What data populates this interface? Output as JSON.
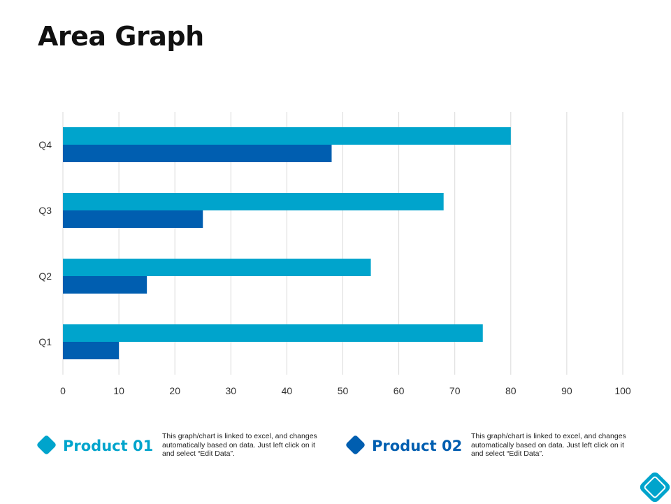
{
  "page": {
    "title": "Area Graph"
  },
  "colors": {
    "product01": "#00a4cc",
    "product02": "#005eb0",
    "grid": "#d9d9d9",
    "text": "#333333"
  },
  "chart_data": {
    "type": "bar",
    "orientation": "horizontal",
    "title": "",
    "xlabel": "",
    "ylabel": "",
    "xlim": [
      0,
      100
    ],
    "x_ticks": [
      0,
      10,
      20,
      30,
      40,
      50,
      60,
      70,
      80,
      90,
      100
    ],
    "grid": true,
    "categories": [
      "Q1",
      "Q2",
      "Q3",
      "Q4"
    ],
    "series": [
      {
        "name": "Product 01",
        "values": [
          75,
          55,
          68,
          80
        ]
      },
      {
        "name": "Product 02",
        "values": [
          10,
          15,
          25,
          48
        ]
      }
    ]
  },
  "legend": [
    {
      "name": "Product 01",
      "description": "This graph/chart is linked to excel, and changes automatically based on data. Just left click on it and select “Edit Data”."
    },
    {
      "name": "Product 02",
      "description": "This graph/chart is linked to excel, and changes automatically based on data. Just left click on it and select “Edit Data”."
    }
  ]
}
